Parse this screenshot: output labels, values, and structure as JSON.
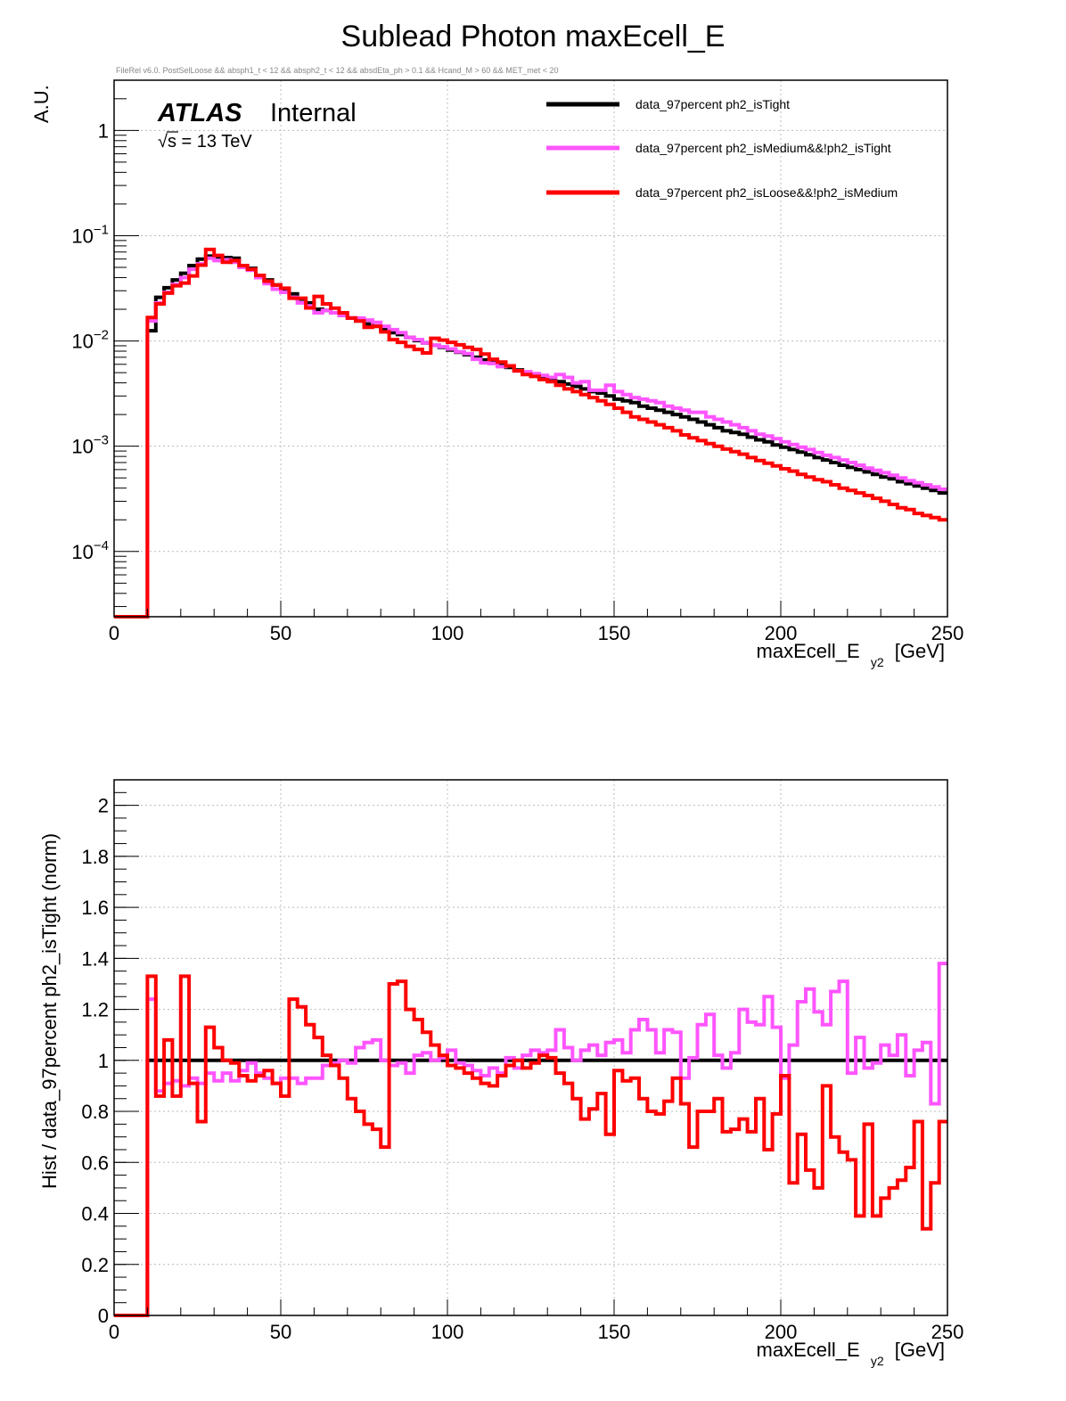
{
  "page_title": "Sublead Photon maxEcell_E",
  "cut_string": "FileRel v6.0. PostSelLoose &&  absph1_t < 12 && absph2_t < 12 && absdEta_ph > 0.1 && Hcand_M > 60 && MET_met < 20",
  "atlas": {
    "label": "ATLAS",
    "status": "Internal",
    "energy_prefix": "s = 13 TeV"
  },
  "colors": {
    "tight": "#000000",
    "medium": "#ff55ff",
    "loose": "#ff0000",
    "grid": "#bbbbbb"
  },
  "chart_data": [
    {
      "type": "line",
      "subtype": "step-histogram",
      "xlabel": "maxEcell_E",
      "xlabel_sub": "y2",
      "xlabel_unit": "[GeV]",
      "ylabel": "A.U.",
      "yscale": "log",
      "xlim": [
        0,
        250
      ],
      "ylim": [
        2.4e-05,
        3
      ],
      "grid": true,
      "legend_position": "top-right",
      "x_ticks": [
        0,
        50,
        100,
        150,
        200,
        250
      ],
      "y_ticks": [
        {
          "value": 1,
          "base": "1",
          "exp": ""
        },
        {
          "value": 0.1,
          "base": "10",
          "exp": "−1"
        },
        {
          "value": 0.01,
          "base": "10",
          "exp": "−2"
        },
        {
          "value": 0.001,
          "base": "10",
          "exp": "−3"
        },
        {
          "value": 0.0001,
          "base": "10",
          "exp": "−4"
        }
      ],
      "bin_edges_start": 0,
      "bin_width": 2.5,
      "series": [
        {
          "name": "data_97percent  ph2_isTight",
          "color": "#000000",
          "values": [
            2.4e-05,
            2.4e-05,
            2.4e-05,
            2.4e-05,
            0.0125,
            0.026,
            0.032,
            0.038,
            0.044,
            0.052,
            0.06,
            0.064,
            0.063,
            0.062,
            0.061,
            0.052,
            0.049,
            0.042,
            0.038,
            0.034,
            0.031,
            0.028,
            0.025,
            0.023,
            0.02,
            0.0195,
            0.0185,
            0.0175,
            0.0165,
            0.0155,
            0.0145,
            0.0138,
            0.0128,
            0.012,
            0.0115,
            0.0108,
            0.0101,
            0.0096,
            0.0091,
            0.0087,
            0.0082,
            0.0078,
            0.0074,
            0.007,
            0.0066,
            0.0062,
            0.0059,
            0.0056,
            0.0053,
            0.005,
            0.0048,
            0.0045,
            0.0043,
            0.0041,
            0.0039,
            0.0037,
            0.0035,
            0.0033,
            0.0032,
            0.003,
            0.0028,
            0.0027,
            0.0026,
            0.0024,
            0.0023,
            0.0022,
            0.0021,
            0.002,
            0.0019,
            0.0018,
            0.0017,
            0.0016,
            0.0015,
            0.0014,
            0.00135,
            0.0013,
            0.00122,
            0.00115,
            0.0011,
            0.00103,
            0.00098,
            0.00093,
            0.00088,
            0.00083,
            0.00078,
            0.00074,
            0.0007,
            0.00066,
            0.00063,
            0.0006,
            0.00057,
            0.00054,
            0.00051,
            0.00049,
            0.00046,
            0.00044,
            0.00042,
            0.0004,
            0.00038,
            0.00036
          ]
        },
        {
          "name": "data_97percent  ph2_isMedium&&!ph2_isTight",
          "color": "#ff55ff",
          "values": [
            2.4e-05,
            2.4e-05,
            2.4e-05,
            2.4e-05,
            0.0155,
            0.023,
            0.029,
            0.0345,
            0.04,
            0.048,
            0.054,
            0.061,
            0.058,
            0.059,
            0.056,
            0.05,
            0.047,
            0.04,
            0.035,
            0.031,
            0.029,
            0.026,
            0.023,
            0.0215,
            0.0185,
            0.0195,
            0.0185,
            0.0175,
            0.0165,
            0.0165,
            0.0158,
            0.015,
            0.0138,
            0.0128,
            0.012,
            0.0108,
            0.0103,
            0.0096,
            0.0091,
            0.0088,
            0.0084,
            0.0079,
            0.0076,
            0.0067,
            0.0062,
            0.0061,
            0.0057,
            0.0058,
            0.0052,
            0.0051,
            0.0049,
            0.0047,
            0.0045,
            0.0048,
            0.0045,
            0.004,
            0.0041,
            0.0034,
            0.0034,
            0.0038,
            0.0033,
            0.0031,
            0.0029,
            0.0028,
            0.0027,
            0.0026,
            0.0024,
            0.0023,
            0.0022,
            0.0021,
            0.0021,
            0.0019,
            0.0018,
            0.0017,
            0.0016,
            0.0015,
            0.0014,
            0.0013,
            0.00125,
            0.00118,
            0.0011,
            0.00104,
            0.00098,
            0.00093,
            0.00087,
            0.00082,
            0.00078,
            0.00074,
            0.0007,
            0.00066,
            0.00062,
            0.00059,
            0.00056,
            0.00053,
            0.0005,
            0.00047,
            0.00045,
            0.00043,
            0.00041,
            0.00039
          ]
        },
        {
          "name": "data_97percent  ph2_isLoose&&!ph2_isMedium",
          "color": "#ff0000",
          "values": [
            2.4e-05,
            2.4e-05,
            2.4e-05,
            2.4e-05,
            0.0167,
            0.0225,
            0.0285,
            0.0335,
            0.0355,
            0.0415,
            0.0525,
            0.074,
            0.065,
            0.056,
            0.058,
            0.052,
            0.048,
            0.042,
            0.037,
            0.034,
            0.0317,
            0.0255,
            0.0255,
            0.0206,
            0.0265,
            0.0225,
            0.0205,
            0.0185,
            0.0165,
            0.0155,
            0.0135,
            0.0138,
            0.0122,
            0.0103,
            0.0097,
            0.0089,
            0.0083,
            0.0077,
            0.0106,
            0.0102,
            0.0097,
            0.0092,
            0.0087,
            0.0083,
            0.0075,
            0.0067,
            0.0063,
            0.0058,
            0.0052,
            0.0048,
            0.0046,
            0.0043,
            0.0041,
            0.0038,
            0.0035,
            0.0033,
            0.0031,
            0.0029,
            0.0027,
            0.0025,
            0.0023,
            0.0021,
            0.0019,
            0.0018,
            0.0017,
            0.0016,
            0.0015,
            0.0014,
            0.00128,
            0.0012,
            0.00113,
            0.00106,
            0.001,
            0.00094,
            0.00089,
            0.00084,
            0.00078,
            0.00073,
            0.00069,
            0.00065,
            0.00061,
            0.00058,
            0.00054,
            0.00051,
            0.00048,
            0.00046,
            0.00043,
            0.0004,
            0.00038,
            0.00036,
            0.00034,
            0.00032,
            0.0003,
            0.00028,
            0.00026,
            0.00025,
            0.00023,
            0.00022,
            0.00021,
            0.0002
          ]
        }
      ]
    },
    {
      "type": "line",
      "subtype": "step-histogram",
      "xlabel": "maxEcell_E",
      "xlabel_sub": "y2",
      "xlabel_unit": "[GeV]",
      "ylabel": "Hist / data_97percent  ph2_isTight (norm)",
      "yscale": "linear",
      "xlim": [
        0,
        250
      ],
      "ylim": [
        0,
        2.1
      ],
      "grid": true,
      "x_ticks": [
        0,
        50,
        100,
        150,
        200,
        250
      ],
      "y_ticks": [
        {
          "value": 0,
          "base": "0",
          "exp": ""
        },
        {
          "value": 0.2,
          "base": "0.2",
          "exp": ""
        },
        {
          "value": 0.4,
          "base": "0.4",
          "exp": ""
        },
        {
          "value": 0.6,
          "base": "0.6",
          "exp": ""
        },
        {
          "value": 0.8,
          "base": "0.8",
          "exp": ""
        },
        {
          "value": 1,
          "base": "1",
          "exp": ""
        },
        {
          "value": 1.2,
          "base": "1.2",
          "exp": ""
        },
        {
          "value": 1.4,
          "base": "1.4",
          "exp": ""
        },
        {
          "value": 1.6,
          "base": "1.6",
          "exp": ""
        },
        {
          "value": 1.8,
          "base": "1.8",
          "exp": ""
        },
        {
          "value": 2,
          "base": "2",
          "exp": ""
        }
      ],
      "bin_edges_start": 0,
      "bin_width": 2.5,
      "series": [
        {
          "name": "data_97percent  ph2_isTight",
          "color": "#000000",
          "values": [
            0,
            0,
            0,
            0,
            1,
            1,
            1,
            1,
            1,
            1,
            1,
            1,
            1,
            1,
            1,
            1,
            1,
            1,
            1,
            1,
            1,
            1,
            1,
            1,
            1,
            1,
            1,
            1,
            1,
            1,
            1,
            1,
            1,
            1,
            1,
            1,
            1,
            1,
            1,
            1,
            1,
            1,
            1,
            1,
            1,
            1,
            1,
            1,
            1,
            1,
            1,
            1,
            1,
            1,
            1,
            1,
            1,
            1,
            1,
            1,
            1,
            1,
            1,
            1,
            1,
            1,
            1,
            1,
            1,
            1,
            1,
            1,
            1,
            1,
            1,
            1,
            1,
            1,
            1,
            1,
            1,
            1,
            1,
            1,
            1,
            1,
            1,
            1,
            1,
            1,
            1,
            1,
            1,
            1,
            1,
            1,
            1,
            1,
            1,
            1
          ]
        },
        {
          "name": "data_97percent  ph2_isMedium&&!ph2_isTight",
          "color": "#ff55ff",
          "values": [
            0,
            0,
            0,
            0,
            1.24,
            0.88,
            0.91,
            0.92,
            0.9,
            0.93,
            0.91,
            0.95,
            0.92,
            0.95,
            0.92,
            0.96,
            0.99,
            0.95,
            0.93,
            0.91,
            0.93,
            0.93,
            0.91,
            0.93,
            0.93,
            0.98,
            0.99,
            1.0,
            0.99,
            1.05,
            1.07,
            1.08,
            1.0,
            0.98,
            0.99,
            0.95,
            1.02,
            1.03,
            1.0,
            1.01,
            1.04,
            0.99,
            0.98,
            0.96,
            0.94,
            0.97,
            0.95,
            1.01,
            0.97,
            1.02,
            1.04,
            1.03,
            1.04,
            1.12,
            1.05,
            1.0,
            1.04,
            1.06,
            1.02,
            1.07,
            1.08,
            1.03,
            1.12,
            1.16,
            1.12,
            1.03,
            1.12,
            1.11,
            0.93,
            1.01,
            1.14,
            1.18,
            1.02,
            0.97,
            1.03,
            1.2,
            1.15,
            1.14,
            1.25,
            1.13,
            0.93,
            1.06,
            1.23,
            1.28,
            1.19,
            1.14,
            1.27,
            1.31,
            0.95,
            1.09,
            0.97,
            0.99,
            1.06,
            1.02,
            1.1,
            0.94,
            1.04,
            1.07,
            0.83,
            1.38
          ]
        },
        {
          "name": "data_97percent  ph2_isLoose&&!ph2_isMedium",
          "color": "#ff0000",
          "values": [
            0,
            0,
            0,
            0,
            1.33,
            0.86,
            1.08,
            0.86,
            1.33,
            0.91,
            0.76,
            1.13,
            1.05,
            1.0,
            0.99,
            0.94,
            0.92,
            0.94,
            0.96,
            0.91,
            0.86,
            1.24,
            1.21,
            1.14,
            1.09,
            1.02,
            0.98,
            0.93,
            0.85,
            0.8,
            0.75,
            0.73,
            0.66,
            1.3,
            1.31,
            1.2,
            1.16,
            1.11,
            1.06,
            1.02,
            0.98,
            0.97,
            0.95,
            0.93,
            0.91,
            0.9,
            0.94,
            0.98,
            1.0,
            0.97,
            0.99,
            1.02,
            1.01,
            0.95,
            0.91,
            0.85,
            0.77,
            0.81,
            0.87,
            0.71,
            0.96,
            0.92,
            0.93,
            0.85,
            0.8,
            0.79,
            0.84,
            0.93,
            0.83,
            0.66,
            0.8,
            0.8,
            0.85,
            0.72,
            0.73,
            0.77,
            0.72,
            0.85,
            0.65,
            0.79,
            0.94,
            0.52,
            0.71,
            0.57,
            0.5,
            0.9,
            0.7,
            0.64,
            0.61,
            0.39,
            0.75,
            0.39,
            0.46,
            0.5,
            0.53,
            0.58,
            0.76,
            0.34,
            0.52,
            0.76
          ]
        }
      ]
    }
  ]
}
